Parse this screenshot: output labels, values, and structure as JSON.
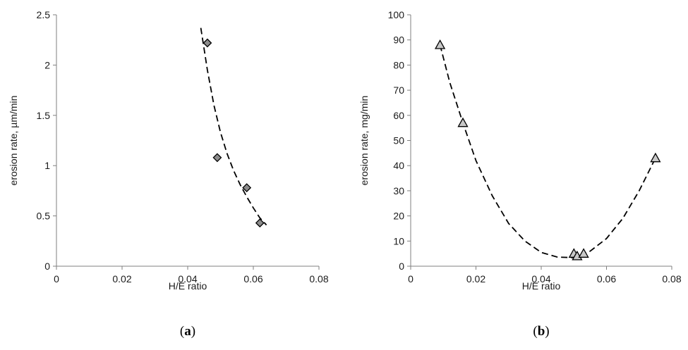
{
  "chart_data": [
    {
      "panel": "a",
      "panel_label_open": "(",
      "panel_label_letter": "a",
      "panel_label_close": ")",
      "type": "scatter",
      "xlabel": "H/E ratio",
      "ylabel": "erosion rate, µm/min",
      "xlim": [
        0,
        0.08
      ],
      "ylim": [
        0,
        2.5
      ],
      "xticks": [
        "0",
        "0.02",
        "0.04",
        "0.06",
        "0.08"
      ],
      "yticks": [
        "0",
        "0.5",
        "1",
        "1.5",
        "2",
        "2.5"
      ],
      "xtick_values": [
        0,
        0.02,
        0.04,
        0.06,
        0.08
      ],
      "ytick_values": [
        0,
        0.5,
        1,
        1.5,
        2,
        2.5
      ],
      "marker": "diamond",
      "points": [
        {
          "x": 0.046,
          "y": 2.22
        },
        {
          "x": 0.049,
          "y": 1.08
        },
        {
          "x": 0.058,
          "y": 0.78
        },
        {
          "x": 0.062,
          "y": 0.43
        }
      ],
      "trendline": {
        "style": "dashed",
        "points": [
          {
            "x": 0.044,
            "y": 2.37
          },
          {
            "x": 0.046,
            "y": 1.95
          },
          {
            "x": 0.048,
            "y": 1.6
          },
          {
            "x": 0.05,
            "y": 1.33
          },
          {
            "x": 0.052,
            "y": 1.12
          },
          {
            "x": 0.054,
            "y": 0.95
          },
          {
            "x": 0.056,
            "y": 0.81
          },
          {
            "x": 0.058,
            "y": 0.69
          },
          {
            "x": 0.06,
            "y": 0.58
          },
          {
            "x": 0.062,
            "y": 0.48
          },
          {
            "x": 0.064,
            "y": 0.41
          }
        ]
      },
      "marker_fill": "#8c8c8c",
      "marker_stroke": "#000000"
    },
    {
      "panel": "b",
      "panel_label_open": "(",
      "panel_label_letter": "b",
      "panel_label_close": ")",
      "type": "scatter",
      "xlabel": "H/E ratio",
      "ylabel": "erosion rate, mg/min",
      "xlim": [
        0,
        0.08
      ],
      "ylim": [
        0,
        100
      ],
      "xticks": [
        "0",
        "0.02",
        "0.04",
        "0.06",
        "0.08"
      ],
      "yticks": [
        "0",
        "10",
        "20",
        "30",
        "40",
        "50",
        "60",
        "70",
        "80",
        "90",
        "100"
      ],
      "xtick_values": [
        0,
        0.02,
        0.04,
        0.06,
        0.08
      ],
      "ytick_values": [
        0,
        10,
        20,
        30,
        40,
        50,
        60,
        70,
        80,
        90,
        100
      ],
      "marker": "triangle",
      "points": [
        {
          "x": 0.009,
          "y": 88
        },
        {
          "x": 0.016,
          "y": 57
        },
        {
          "x": 0.05,
          "y": 5
        },
        {
          "x": 0.051,
          "y": 4
        },
        {
          "x": 0.053,
          "y": 5
        },
        {
          "x": 0.075,
          "y": 43
        }
      ],
      "trendline": {
        "style": "dashed",
        "points": [
          {
            "x": 0.009,
            "y": 88
          },
          {
            "x": 0.012,
            "y": 73
          },
          {
            "x": 0.016,
            "y": 57
          },
          {
            "x": 0.02,
            "y": 42
          },
          {
            "x": 0.025,
            "y": 28
          },
          {
            "x": 0.03,
            "y": 17
          },
          {
            "x": 0.035,
            "y": 10
          },
          {
            "x": 0.04,
            "y": 5.5
          },
          {
            "x": 0.045,
            "y": 3.6
          },
          {
            "x": 0.05,
            "y": 3.4
          },
          {
            "x": 0.055,
            "y": 6
          },
          {
            "x": 0.06,
            "y": 11
          },
          {
            "x": 0.065,
            "y": 19
          },
          {
            "x": 0.07,
            "y": 30
          },
          {
            "x": 0.075,
            "y": 43
          }
        ]
      },
      "marker_fill": "#c8c8c8",
      "marker_stroke": "#000000"
    }
  ]
}
